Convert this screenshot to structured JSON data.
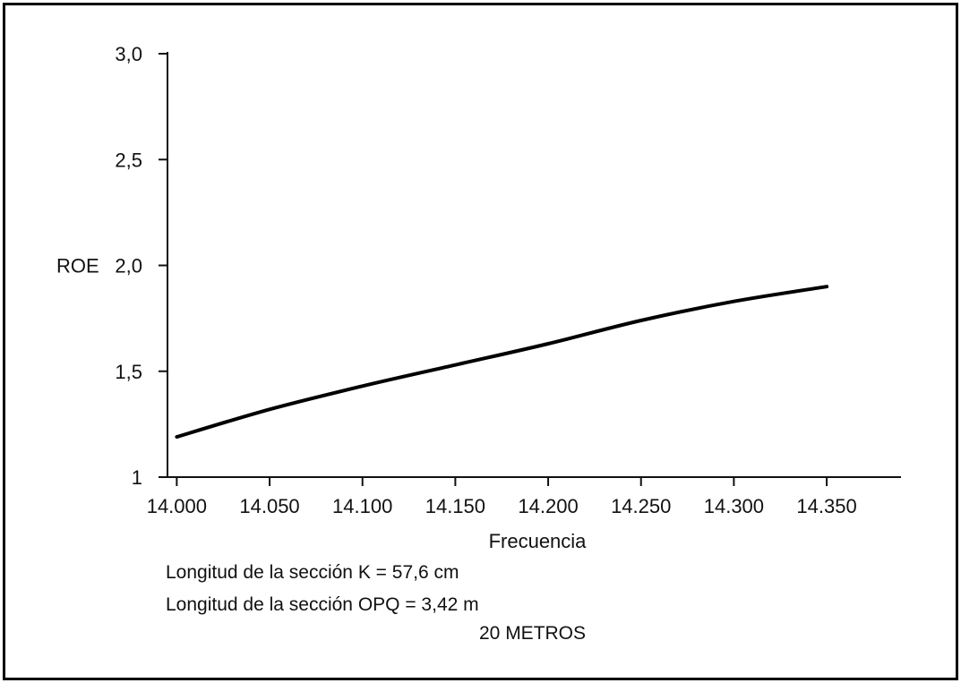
{
  "chart_data": {
    "type": "line",
    "title": "20 METROS",
    "xlabel": "Frecuencia",
    "ylabel": "ROE",
    "xlim": [
      13.995,
      14.39
    ],
    "ylim": [
      1,
      3.0
    ],
    "x_ticks": [
      14.0,
      14.05,
      14.1,
      14.15,
      14.2,
      14.25,
      14.3,
      14.35
    ],
    "x_tick_labels": [
      "14.000",
      "14.050",
      "14.100",
      "14.150",
      "14.200",
      "14.250",
      "14.300",
      "14.350"
    ],
    "y_ticks": [
      1,
      1.5,
      2.0,
      2.5,
      3.0
    ],
    "y_tick_labels": [
      "1",
      "1,5",
      "2,0",
      "2,5",
      "3,0"
    ],
    "grid": false,
    "series": [
      {
        "x": [
          14.0,
          14.05,
          14.1,
          14.15,
          14.2,
          14.25,
          14.3,
          14.35
        ],
        "y": [
          1.19,
          1.32,
          1.43,
          1.53,
          1.63,
          1.74,
          1.83,
          1.9
        ]
      }
    ]
  },
  "notes": [
    "Longitud de la sección K = 57,6 cm",
    "Longitud de la sección OPQ = 3,42 m"
  ]
}
